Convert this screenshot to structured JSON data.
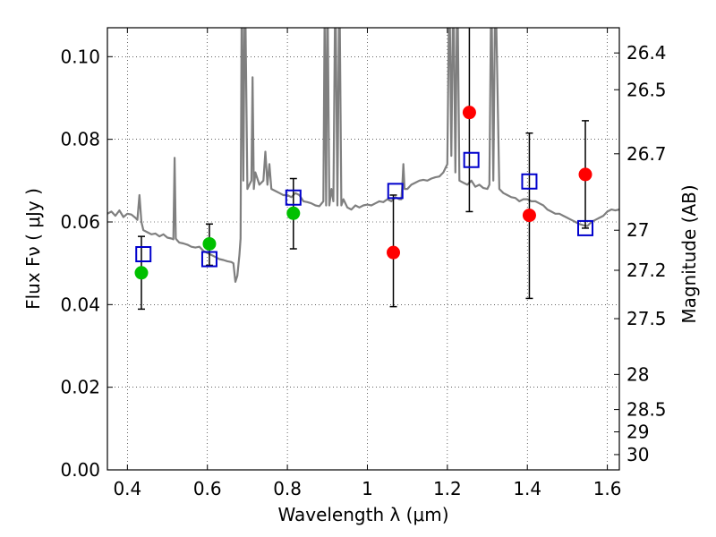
{
  "chart_data": {
    "type": "scatter",
    "title": "",
    "xlabel": "Wavelength  λ (μm)",
    "ylabel": "Flux  Fν  ( μJy )",
    "y2label": "Magnitude (AB)",
    "xlim": [
      0.35,
      1.63
    ],
    "ylim": [
      0.0,
      0.107
    ],
    "grid": true,
    "legend": "none",
    "x_ticks": [
      0.4,
      0.6,
      0.8,
      1.0,
      1.2,
      1.4,
      1.6
    ],
    "x_tick_labels": [
      "0.4",
      "0.6",
      "0.8",
      "1",
      "1.2",
      "1.4",
      "1.6"
    ],
    "y_ticks": [
      0.0,
      0.02,
      0.04,
      0.06,
      0.08,
      0.1
    ],
    "y_tick_labels": [
      "0.00",
      "0.02",
      "0.04",
      "0.06",
      "0.08",
      "0.10"
    ],
    "y2_ticks": [
      {
        "label": "26.4",
        "flux": 0.1009
      },
      {
        "label": "26.5",
        "flux": 0.092
      },
      {
        "label": "26.7",
        "flux": 0.0765
      },
      {
        "label": "27",
        "flux": 0.058
      },
      {
        "label": "27.2",
        "flux": 0.0483
      },
      {
        "label": "27.5",
        "flux": 0.0366
      },
      {
        "label": "28",
        "flux": 0.0231
      },
      {
        "label": "28.5",
        "flux": 0.0146
      },
      {
        "label": "29",
        "flux": 0.0092
      },
      {
        "label": "30",
        "flux": 0.0037
      }
    ],
    "series": [
      {
        "type": "line",
        "color": "#7f7f7f",
        "x": [
          0.35,
          0.36,
          0.37,
          0.38,
          0.39,
          0.4,
          0.41,
          0.42,
          0.425,
          0.43,
          0.435,
          0.44,
          0.45,
          0.46,
          0.47,
          0.48,
          0.49,
          0.5,
          0.51,
          0.515,
          0.518,
          0.521,
          0.525,
          0.53,
          0.54,
          0.55,
          0.56,
          0.57,
          0.58,
          0.59,
          0.6,
          0.61,
          0.62,
          0.63,
          0.64,
          0.65,
          0.66,
          0.665,
          0.67,
          0.675,
          0.68,
          0.683,
          0.686,
          0.69,
          0.694,
          0.7,
          0.705,
          0.71,
          0.713,
          0.716,
          0.72,
          0.73,
          0.74,
          0.745,
          0.75,
          0.755,
          0.76,
          0.77,
          0.78,
          0.79,
          0.8,
          0.81,
          0.82,
          0.83,
          0.84,
          0.85,
          0.86,
          0.87,
          0.88,
          0.89,
          0.893,
          0.897,
          0.9,
          0.905,
          0.91,
          0.915,
          0.92,
          0.925,
          0.93,
          0.935,
          0.94,
          0.95,
          0.96,
          0.97,
          0.98,
          0.99,
          1.0,
          1.01,
          1.02,
          1.03,
          1.04,
          1.05,
          1.06,
          1.07,
          1.08,
          1.085,
          1.088,
          1.09,
          1.093,
          1.1,
          1.11,
          1.12,
          1.13,
          1.14,
          1.15,
          1.16,
          1.17,
          1.18,
          1.19,
          1.2,
          1.205,
          1.21,
          1.215,
          1.22,
          1.225,
          1.23,
          1.24,
          1.25,
          1.26,
          1.27,
          1.28,
          1.29,
          1.3,
          1.305,
          1.31,
          1.315,
          1.32,
          1.33,
          1.34,
          1.35,
          1.36,
          1.37,
          1.38,
          1.39,
          1.4,
          1.41,
          1.42,
          1.43,
          1.44,
          1.45,
          1.46,
          1.47,
          1.48,
          1.49,
          1.5,
          1.51,
          1.52,
          1.53,
          1.54,
          1.55,
          1.56,
          1.57,
          1.58,
          1.59,
          1.6,
          1.61,
          1.62,
          1.63
        ],
        "y": [
          0.062,
          0.0625,
          0.0615,
          0.0628,
          0.0612,
          0.062,
          0.0618,
          0.061,
          0.0605,
          0.0665,
          0.06,
          0.058,
          0.0575,
          0.057,
          0.0572,
          0.0565,
          0.057,
          0.0562,
          0.056,
          0.0558,
          0.0755,
          0.056,
          0.0555,
          0.055,
          0.0548,
          0.0545,
          0.054,
          0.0538,
          0.054,
          0.053,
          0.0525,
          0.052,
          0.0515,
          0.051,
          0.0508,
          0.0505,
          0.0503,
          0.05,
          0.0455,
          0.047,
          0.052,
          0.056,
          0.12,
          0.07,
          0.12,
          0.068,
          0.069,
          0.07,
          0.095,
          0.068,
          0.072,
          0.069,
          0.07,
          0.077,
          0.069,
          0.074,
          0.068,
          0.0675,
          0.067,
          0.0665,
          0.0665,
          0.066,
          0.067,
          0.0665,
          0.065,
          0.0648,
          0.0645,
          0.064,
          0.0638,
          0.065,
          0.11,
          0.064,
          0.12,
          0.064,
          0.068,
          0.065,
          0.12,
          0.064,
          0.12,
          0.064,
          0.0655,
          0.0635,
          0.063,
          0.064,
          0.0635,
          0.064,
          0.0642,
          0.064,
          0.0645,
          0.065,
          0.0648,
          0.0655,
          0.065,
          0.066,
          0.0655,
          0.0655,
          0.07,
          0.074,
          0.068,
          0.068,
          0.069,
          0.0695,
          0.07,
          0.0702,
          0.07,
          0.0705,
          0.0708,
          0.071,
          0.072,
          0.074,
          0.12,
          0.076,
          0.12,
          0.072,
          0.12,
          0.07,
          0.0695,
          0.069,
          0.07,
          0.0685,
          0.069,
          0.0682,
          0.068,
          0.069,
          0.12,
          0.07,
          0.12,
          0.068,
          0.067,
          0.0665,
          0.066,
          0.0658,
          0.065,
          0.0655,
          0.0655,
          0.065,
          0.065,
          0.0645,
          0.064,
          0.063,
          0.0625,
          0.062,
          0.062,
          0.0615,
          0.061,
          0.0605,
          0.06,
          0.0595,
          0.0592,
          0.059,
          0.06,
          0.0605,
          0.061,
          0.0615,
          0.0625,
          0.063,
          0.0628,
          0.063
        ]
      },
      {
        "type": "errorbar",
        "color": "#000000",
        "x": [
          0.435,
          0.605,
          0.815,
          1.065,
          1.255,
          1.405,
          1.545
        ],
        "y_low": [
          0.0389,
          0.0495,
          0.0535,
          0.0395,
          0.0625,
          0.0415,
          0.0585
        ],
        "y_high": [
          0.0565,
          0.0595,
          0.0705,
          0.0665,
          0.11,
          0.0815,
          0.0845
        ]
      },
      {
        "type": "scatter",
        "marker": "circle",
        "color": "#00c000",
        "x": [
          0.435,
          0.605,
          0.815
        ],
        "y": [
          0.0477,
          0.0547,
          0.0621
        ]
      },
      {
        "type": "scatter",
        "marker": "circle",
        "color": "#ff0000",
        "x": [
          1.065,
          1.255,
          1.405,
          1.545
        ],
        "y": [
          0.0526,
          0.0865,
          0.0616,
          0.0715
        ]
      },
      {
        "type": "scatter",
        "marker": "square-open",
        "color": "#0000cc",
        "x": [
          0.44,
          0.605,
          0.815,
          1.07,
          1.26,
          1.405,
          1.545
        ],
        "y": [
          0.0522,
          0.051,
          0.0659,
          0.0675,
          0.075,
          0.0698,
          0.0585
        ]
      }
    ]
  }
}
